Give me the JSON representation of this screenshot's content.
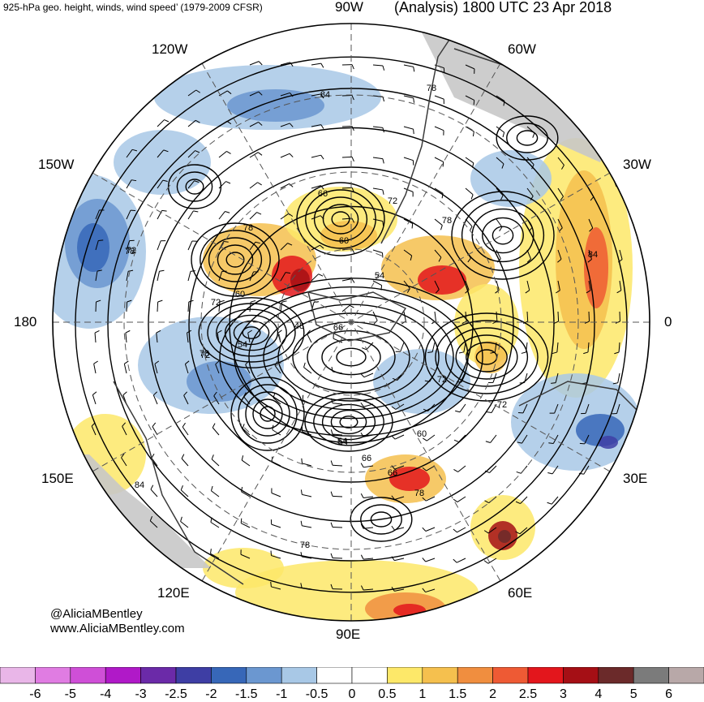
{
  "header": {
    "title_left": "925-hPa geo. height, winds, wind speed’ (1979-2009 CFSR)",
    "title_right": "(Analysis) 1800 UTC 23 Apr 2018"
  },
  "map": {
    "longitude_labels": {
      "n90w": "90W",
      "n120w": "120W",
      "n60w": "60W",
      "n150w": "150W",
      "n30w": "30W",
      "n180": "180",
      "n0": "0",
      "n150e": "150E",
      "n30e": "30E",
      "n120e": "120E",
      "n60e": "60E",
      "n90e": "90E"
    },
    "contour_labels": [
      "84",
      "78",
      "66",
      "72",
      "60",
      "78",
      "78",
      "54",
      "72",
      "60",
      "54",
      "48",
      "66",
      "84",
      "78",
      "72",
      "54",
      "60",
      "66",
      "72",
      "66",
      "54",
      "78",
      "72",
      "78",
      "84",
      "72",
      "78"
    ],
    "colors": {
      "land": "#c8c8c8",
      "coast": "#3a3a3a",
      "contour": "#000000"
    }
  },
  "credits": {
    "twitter": "@AliciaMBentley",
    "website": "www.AliciaMBentley.com"
  },
  "colorbar": {
    "ticks": [
      "-6",
      "-5",
      "-4",
      "-3",
      "-2.5",
      "-2",
      "-1.5",
      "-1",
      "-0.5",
      "0",
      "0.5",
      "1",
      "1.5",
      "2",
      "2.5",
      "3",
      "4",
      "5",
      "6"
    ],
    "colors": [
      "#e9b6e8",
      "#e07ce2",
      "#cf4fd7",
      "#b019c8",
      "#6b2aa8",
      "#3e3ea4",
      "#3767b8",
      "#6b97d0",
      "#a8c8e6",
      "#ffffff",
      "#ffffff",
      "#fde869",
      "#f5c04e",
      "#f08e3f",
      "#ee5a34",
      "#e3161c",
      "#a50f15",
      "#6b2a2a",
      "#7b7b7b",
      "#b8a8a8"
    ]
  }
}
